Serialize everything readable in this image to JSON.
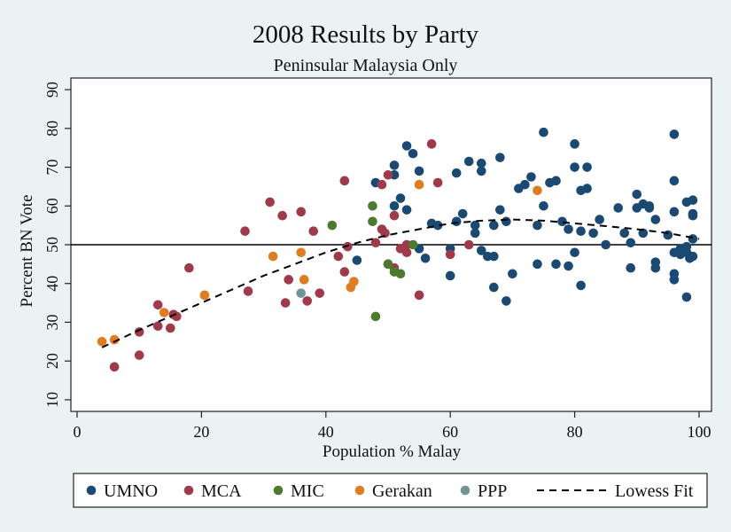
{
  "chart_data": {
    "type": "scatter",
    "title": "2008 Results by Party",
    "subtitle": "Peninsular Malaysia Only",
    "xlabel": "Population % Malay",
    "ylabel": "Percent BN Vote",
    "xlim": [
      -1,
      102
    ],
    "ylim": [
      7,
      93
    ],
    "x_ticks": [
      0,
      20,
      40,
      60,
      80,
      100
    ],
    "y_ticks": [
      10,
      20,
      30,
      40,
      50,
      60,
      70,
      80,
      90
    ],
    "reference_line_y": 50,
    "grid": false,
    "legend_position": "bottom",
    "series": [
      {
        "name": "UMNO",
        "color": "#1a4a73",
        "points": [
          [
            45,
            46
          ],
          [
            48,
            66
          ],
          [
            51,
            60
          ],
          [
            51,
            70.5
          ],
          [
            51,
            68
          ],
          [
            52,
            62
          ],
          [
            53,
            75.5
          ],
          [
            53,
            59
          ],
          [
            54,
            73.5
          ],
          [
            55,
            69
          ],
          [
            55,
            49
          ],
          [
            56,
            46.5
          ],
          [
            57,
            55.5
          ],
          [
            58,
            55
          ],
          [
            60,
            42
          ],
          [
            60,
            49
          ],
          [
            61,
            56
          ],
          [
            61,
            68.5
          ],
          [
            62,
            58
          ],
          [
            63,
            71.5
          ],
          [
            64,
            55
          ],
          [
            64,
            53
          ],
          [
            65,
            71
          ],
          [
            65,
            69
          ],
          [
            65,
            48.5
          ],
          [
            66,
            47
          ],
          [
            67,
            39
          ],
          [
            67,
            47
          ],
          [
            67,
            55
          ],
          [
            68,
            59
          ],
          [
            68,
            72.5
          ],
          [
            69,
            56
          ],
          [
            69,
            35.5
          ],
          [
            70,
            42.5
          ],
          [
            71,
            64.5
          ],
          [
            72,
            65.5
          ],
          [
            73,
            67.5
          ],
          [
            74,
            45
          ],
          [
            74,
            55
          ],
          [
            75,
            60
          ],
          [
            75,
            79
          ],
          [
            76,
            66
          ],
          [
            77,
            45
          ],
          [
            77,
            66.5
          ],
          [
            78,
            56
          ],
          [
            79,
            54
          ],
          [
            79,
            44.5
          ],
          [
            80,
            76
          ],
          [
            80,
            70
          ],
          [
            80,
            48
          ],
          [
            81,
            64
          ],
          [
            81,
            39.5
          ],
          [
            81,
            53.5
          ],
          [
            82,
            70
          ],
          [
            82,
            64.5
          ],
          [
            83,
            53
          ],
          [
            84,
            56.5
          ],
          [
            85,
            50
          ],
          [
            87,
            59.5
          ],
          [
            88,
            53
          ],
          [
            89,
            50.5
          ],
          [
            89,
            44
          ],
          [
            90,
            63
          ],
          [
            90,
            59.5
          ],
          [
            91,
            60.5
          ],
          [
            91,
            53
          ],
          [
            92,
            60
          ],
          [
            92,
            59.5
          ],
          [
            93,
            56.5
          ],
          [
            93,
            45.5
          ],
          [
            93,
            44
          ],
          [
            95,
            52.5
          ],
          [
            96,
            66.5
          ],
          [
            96,
            78.5
          ],
          [
            96,
            58.5
          ],
          [
            96,
            48
          ],
          [
            96,
            42.5
          ],
          [
            96,
            41
          ],
          [
            97,
            49
          ],
          [
            97,
            47.5
          ],
          [
            98,
            61
          ],
          [
            98,
            48
          ],
          [
            98,
            36.5
          ],
          [
            98,
            48
          ],
          [
            98,
            49.5
          ],
          [
            99,
            61.5
          ],
          [
            99,
            58
          ],
          [
            99,
            57.5
          ],
          [
            99,
            51.5
          ],
          [
            99,
            47
          ],
          [
            98.5,
            46.5
          ]
        ]
      },
      {
        "name": "MCA",
        "color": "#a03a4a",
        "points": [
          [
            6,
            18.5
          ],
          [
            10,
            27.5
          ],
          [
            10,
            21.5
          ],
          [
            13,
            34.5
          ],
          [
            13,
            29
          ],
          [
            15,
            28.5
          ],
          [
            15.5,
            32
          ],
          [
            16,
            31.5
          ],
          [
            18,
            44
          ],
          [
            27,
            53.5
          ],
          [
            27.5,
            38
          ],
          [
            31,
            61
          ],
          [
            33,
            57.5
          ],
          [
            34,
            41
          ],
          [
            33.5,
            35
          ],
          [
            36,
            58.5
          ],
          [
            37,
            35.5
          ],
          [
            38,
            53.5
          ],
          [
            39,
            37.5
          ],
          [
            42,
            47
          ],
          [
            43,
            43
          ],
          [
            43,
            66.5
          ],
          [
            43.5,
            49.5
          ],
          [
            48,
            50.5
          ],
          [
            49,
            65.5
          ],
          [
            49,
            54
          ],
          [
            49.5,
            53
          ],
          [
            50,
            68
          ],
          [
            50,
            45
          ],
          [
            51,
            57.5
          ],
          [
            51,
            44
          ],
          [
            52,
            49
          ],
          [
            53,
            50
          ],
          [
            53,
            48
          ],
          [
            55,
            37
          ],
          [
            57,
            76
          ],
          [
            58,
            66
          ],
          [
            60,
            47.5
          ],
          [
            63,
            50
          ]
        ]
      },
      {
        "name": "MIC",
        "color": "#4c7a2e",
        "points": [
          [
            41,
            55
          ],
          [
            47.5,
            56
          ],
          [
            47.5,
            60
          ],
          [
            48,
            31.5
          ],
          [
            50,
            45
          ],
          [
            51,
            43
          ],
          [
            52,
            42.5
          ],
          [
            54,
            50
          ]
        ]
      },
      {
        "name": "Gerakan",
        "color": "#e07b1e",
        "points": [
          [
            4,
            25
          ],
          [
            6,
            25.5
          ],
          [
            14,
            32.5
          ],
          [
            20.5,
            37
          ],
          [
            31.5,
            47
          ],
          [
            36,
            48
          ],
          [
            36.5,
            41
          ],
          [
            44,
            39
          ],
          [
            44.5,
            40.5
          ],
          [
            55,
            65.5
          ],
          [
            74,
            64
          ]
        ]
      },
      {
        "name": "PPP",
        "color": "#6f9694",
        "points": [
          [
            36,
            37.5
          ]
        ]
      }
    ],
    "fit": {
      "name": "Lowess Fit",
      "color": "#000000",
      "points": [
        [
          4,
          23.5
        ],
        [
          10,
          28
        ],
        [
          15,
          31.5
        ],
        [
          20,
          35
        ],
        [
          25,
          38.5
        ],
        [
          30,
          42
        ],
        [
          35,
          45
        ],
        [
          40,
          48
        ],
        [
          45,
          50.5
        ],
        [
          50,
          52.5
        ],
        [
          55,
          54
        ],
        [
          60,
          55.5
        ],
        [
          65,
          56.2
        ],
        [
          70,
          56.5
        ],
        [
          75,
          56.2
        ],
        [
          80,
          55.5
        ],
        [
          85,
          54.8
        ],
        [
          90,
          54
        ],
        [
          95,
          53
        ],
        [
          100,
          51.5
        ]
      ]
    }
  }
}
